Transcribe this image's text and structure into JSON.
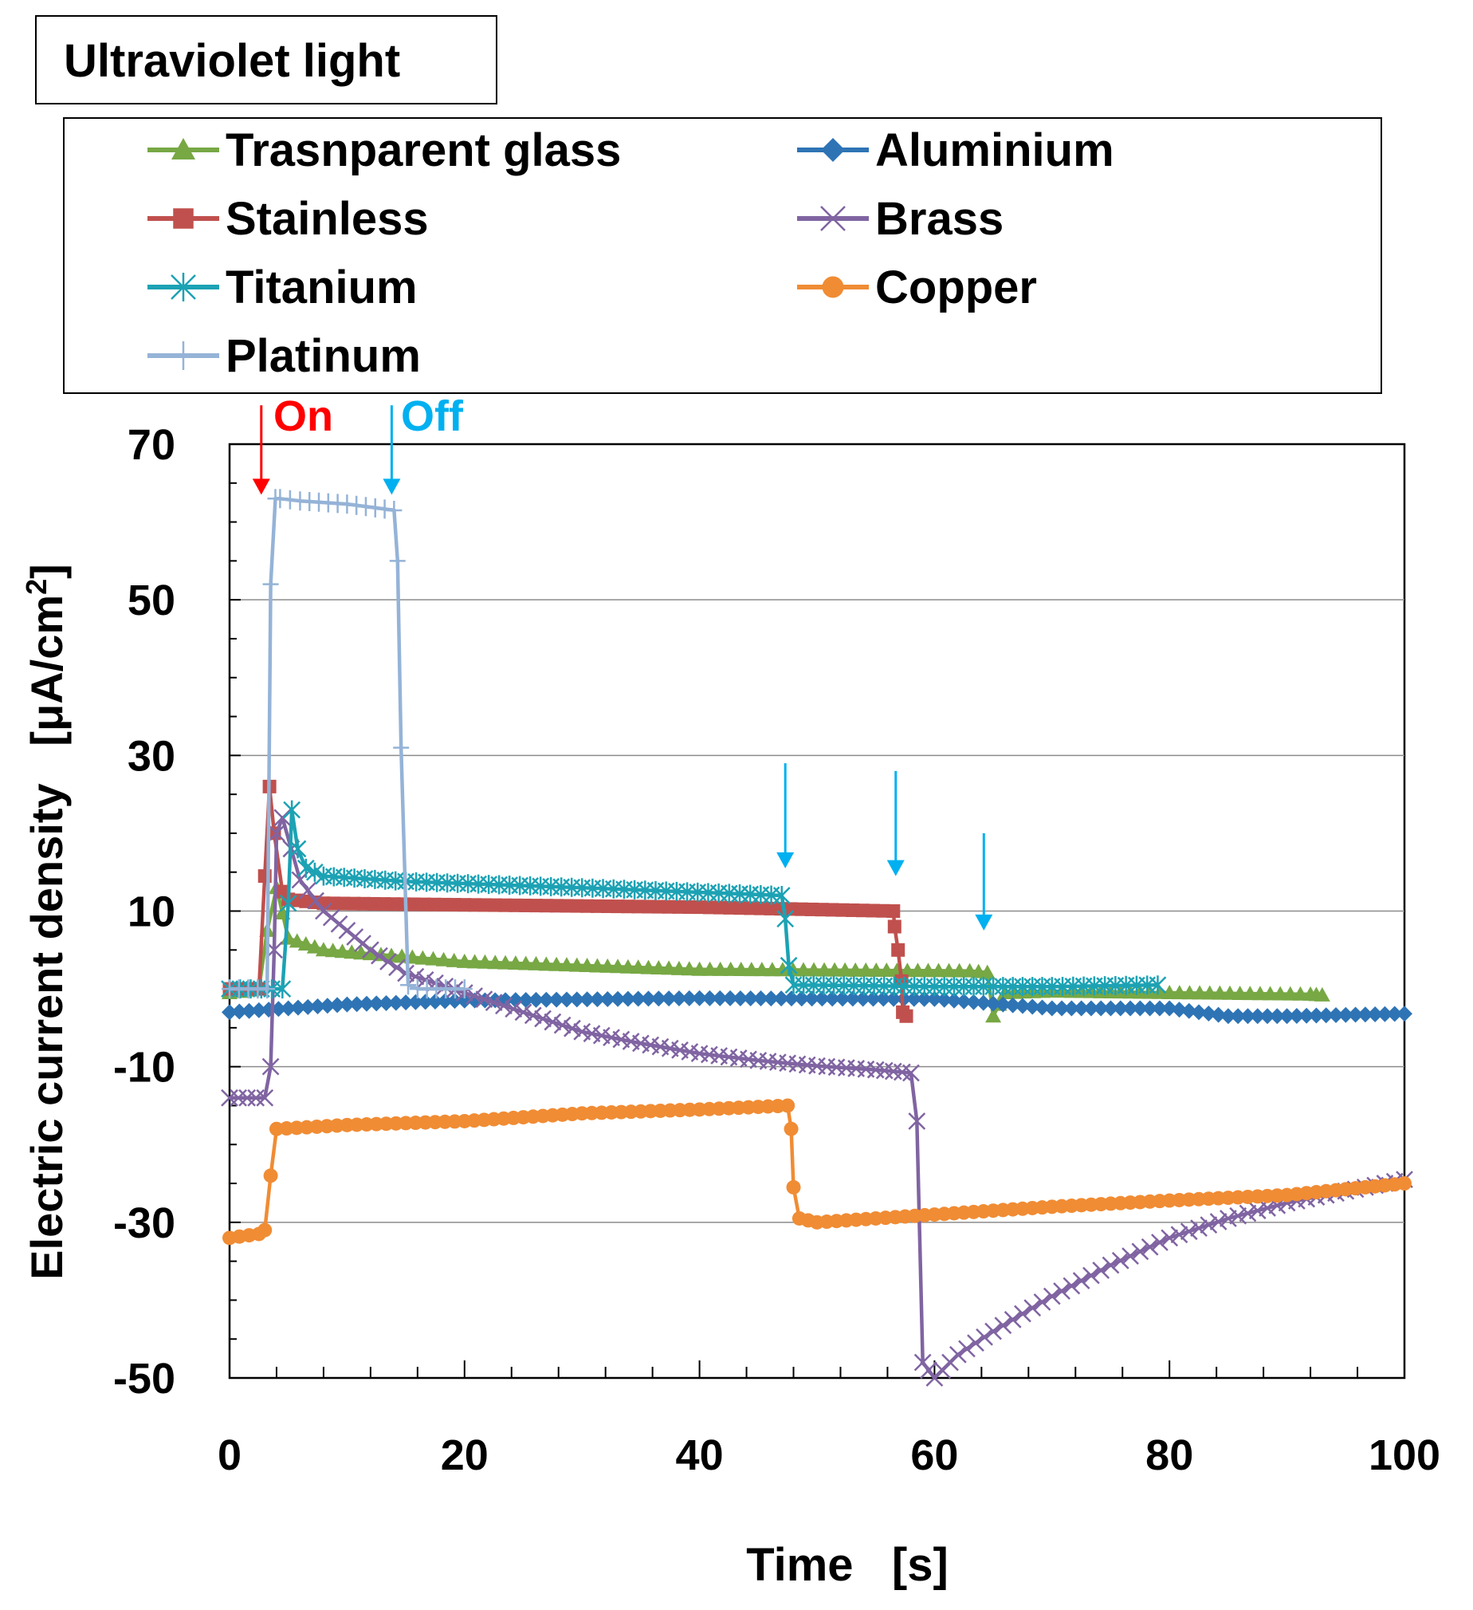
{
  "chart_data": {
    "type": "line",
    "title": "Ultraviolet light",
    "xlabel": "Time   [s]",
    "ylabel_main": "Electric current density   [μA/cm",
    "ylabel_sup": "2",
    "ylabel_close": "]",
    "xlim": [
      0,
      100
    ],
    "ylim": [
      -50,
      70
    ],
    "xticks": [
      0,
      20,
      40,
      60,
      80,
      100
    ],
    "yticks": [
      -50,
      -30,
      -10,
      10,
      30,
      50,
      70
    ],
    "grid_y": [
      -30,
      -10,
      10,
      30,
      50
    ],
    "annotations": {
      "on_label": "On",
      "off_label": "Off",
      "on_color": "#ff0000",
      "off_color": "#00b0f0",
      "on_arrow": {
        "x": 2.7,
        "y_from": 75,
        "y_to": 63.5
      },
      "off_arrows": [
        {
          "x": 13.8,
          "y_from": 75,
          "y_to": 63.5
        },
        {
          "x": 47.3,
          "y_from": 29,
          "y_to": 15.5
        },
        {
          "x": 56.7,
          "y_from": 28,
          "y_to": 14.5
        },
        {
          "x": 64.2,
          "y_from": 20,
          "y_to": 7.5
        }
      ]
    },
    "series": [
      {
        "name": "Trasnparent glass",
        "color": "#77a844",
        "marker": "triangle",
        "x": [
          0,
          2.5,
          3.2,
          4,
          5,
          8,
          12,
          20,
          40,
          63,
          64.5,
          65,
          66,
          70,
          80,
          92,
          93
        ],
        "y": [
          -0.5,
          0,
          7.5,
          13,
          6.5,
          5,
          4.5,
          3.5,
          2.5,
          2.3,
          2.1,
          -3.5,
          -0.5,
          -0.3,
          -0.5,
          -0.7,
          -0.8
        ]
      },
      {
        "name": "Aluminium",
        "color": "#2e74b5",
        "marker": "diamond",
        "x": [
          0,
          5,
          10,
          20,
          40,
          60,
          70,
          80,
          85,
          90,
          100
        ],
        "y": [
          -3,
          -2.5,
          -2,
          -1.5,
          -1.2,
          -1.3,
          -2.5,
          -2.5,
          -3.5,
          -3.5,
          -3.2
        ]
      },
      {
        "name": "Stainless",
        "color": "#c0504d",
        "marker": "square",
        "x": [
          0,
          2.5,
          3,
          3.4,
          3.8,
          4.5,
          5,
          8,
          20,
          40,
          56.5,
          56.6,
          56.9,
          57.2,
          57.3,
          57.6
        ],
        "y": [
          0,
          0,
          14.5,
          26,
          20,
          12.5,
          11.5,
          11,
          10.8,
          10.5,
          10,
          8,
          5,
          1,
          -3,
          -3.5
        ]
      },
      {
        "name": "Brass",
        "color": "#8064a2",
        "marker": "x",
        "x": [
          0,
          3,
          3.5,
          3.8,
          4,
          4.5,
          6,
          8,
          10,
          12,
          15,
          20,
          25,
          30,
          35,
          40,
          45,
          50,
          55,
          58,
          58.5,
          59,
          60,
          62,
          65,
          70,
          75,
          80,
          85,
          90,
          95,
          100
        ],
        "y": [
          -14,
          -14,
          -10,
          5,
          20,
          22,
          14,
          10,
          7.5,
          5,
          2,
          -0.5,
          -3,
          -5.5,
          -7,
          -8.3,
          -9.2,
          -9.9,
          -10.4,
          -10.8,
          -17,
          -48,
          -50,
          -47,
          -44,
          -39.5,
          -35.5,
          -32,
          -29.5,
          -27.5,
          -26,
          -24.5
        ]
      },
      {
        "name": "Titanium",
        "color": "#1ca2b4",
        "marker": "asterisk",
        "x": [
          0,
          4.5,
          5,
          5.3,
          5.8,
          6.5,
          8,
          15,
          30,
          47,
          47.3,
          47.6,
          48,
          60,
          70,
          79
        ],
        "y": [
          0,
          0,
          11,
          23,
          18,
          15.5,
          14.5,
          13.8,
          13,
          12,
          9,
          3,
          0.5,
          0.3,
          0.3,
          0.5
        ]
      },
      {
        "name": "Copper",
        "color": "#f08c34",
        "marker": "circle",
        "x": [
          0,
          2.5,
          3,
          3.5,
          4,
          10,
          20,
          30,
          40,
          47.5,
          47.8,
          48,
          48.5,
          50,
          60,
          70,
          80,
          90,
          100
        ],
        "y": [
          -32,
          -31.5,
          -31,
          -24,
          -18,
          -17.5,
          -17,
          -16,
          -15.5,
          -15,
          -18,
          -25.5,
          -29.5,
          -30,
          -29,
          -28,
          -27.2,
          -26.5,
          -25
        ]
      },
      {
        "name": "Platinum",
        "color": "#95b3d7",
        "marker": "plus",
        "x": [
          0,
          3.2,
          3.5,
          3.9,
          4.3,
          6,
          10,
          14,
          14.3,
          14.6,
          15.2,
          16,
          20
        ],
        "y": [
          0,
          0,
          52,
          63,
          63,
          62.7,
          62.3,
          61.5,
          55,
          31,
          0.5,
          0,
          0
        ]
      }
    ]
  }
}
